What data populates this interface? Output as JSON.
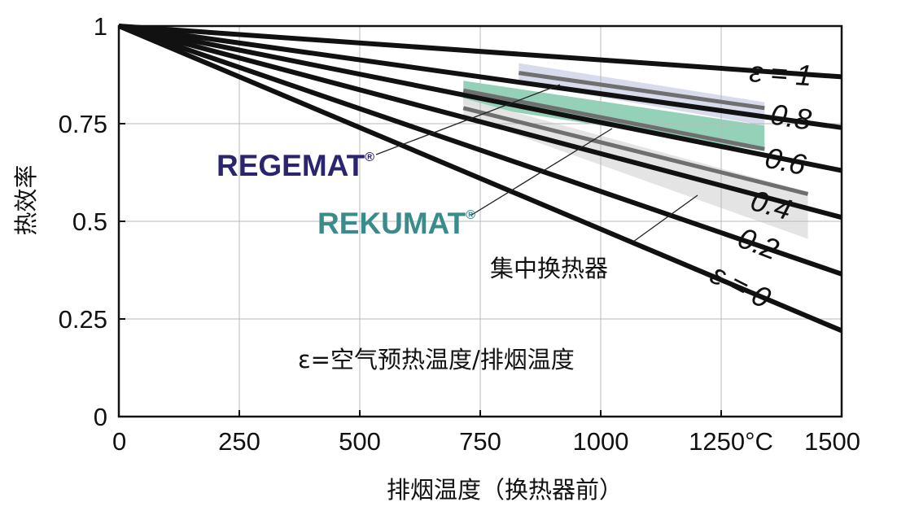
{
  "chart_data": {
    "type": "line",
    "title": "",
    "ylabel": "热效率",
    "xlabel": "排烟温度（换热器前）",
    "xlim": [
      0,
      1500
    ],
    "ylim": [
      0,
      1
    ],
    "x_ticks": [
      {
        "value": 0,
        "label": "0"
      },
      {
        "value": 250,
        "label": "250"
      },
      {
        "value": 500,
        "label": "500"
      },
      {
        "value": 750,
        "label": "750"
      },
      {
        "value": 1000,
        "label": "1000"
      },
      {
        "value": 1250,
        "label": "1250°C"
      },
      {
        "value": 1500,
        "label": "1500"
      }
    ],
    "y_ticks": [
      {
        "value": 0,
        "label": "0"
      },
      {
        "value": 0.25,
        "label": "0.25"
      },
      {
        "value": 0.5,
        "label": "0.5"
      },
      {
        "value": 0.75,
        "label": "0.75"
      },
      {
        "value": 1,
        "label": "1"
      }
    ],
    "grid": true,
    "series": [
      {
        "name": "ε = 1",
        "x": [
          0,
          1500
        ],
        "y": [
          1.0,
          0.87
        ]
      },
      {
        "name": "0.8",
        "x": [
          0,
          1500
        ],
        "y": [
          1.0,
          0.74
        ]
      },
      {
        "name": "0.6",
        "x": [
          0,
          1500
        ],
        "y": [
          1.0,
          0.63
        ]
      },
      {
        "name": "0.4",
        "x": [
          0,
          1500
        ],
        "y": [
          1.0,
          0.51
        ]
      },
      {
        "name": "0.2",
        "x": [
          0,
          1500
        ],
        "y": [
          1.0,
          0.365
        ]
      },
      {
        "name": "ε = 0",
        "x": [
          0,
          1500
        ],
        "y": [
          1.0,
          0.22
        ]
      }
    ],
    "bands": [
      {
        "name": "REGEMAT®",
        "x": [
          830,
          1340
        ],
        "y_top": [
          0.905,
          0.805
        ],
        "y_bottom": [
          0.855,
          0.745
        ],
        "mid_y": [
          0.88,
          0.79
        ],
        "color": "#d6d9ea"
      },
      {
        "name": "REKUMAT®",
        "x": [
          715,
          1340
        ],
        "y_top": [
          0.86,
          0.745
        ],
        "y_bottom": [
          0.8,
          0.68
        ],
        "mid_y": [
          0.835,
          0.685
        ],
        "color": "#8fcfb4"
      },
      {
        "name": "集中换热器",
        "x": [
          715,
          1430
        ],
        "y_top": [
          0.815,
          0.575
        ],
        "y_bottom": [
          0.77,
          0.455
        ],
        "mid_y": [
          0.79,
          0.57
        ],
        "color": "#e3e3e3"
      }
    ],
    "curve_labels": [
      "ε = 1",
      "0.8",
      "0.6",
      "0.4",
      "0.2",
      "ε = 0"
    ],
    "annotations": {
      "regemat": {
        "name": "REGEMAT",
        "mark": "®",
        "color": "#2b2470"
      },
      "rekumat": {
        "name": "REKUMAT",
        "mark": "®",
        "color": "#3a8c8c"
      },
      "central": "集中换热器",
      "definition": "ε=空气预热温度/排烟温度"
    }
  }
}
